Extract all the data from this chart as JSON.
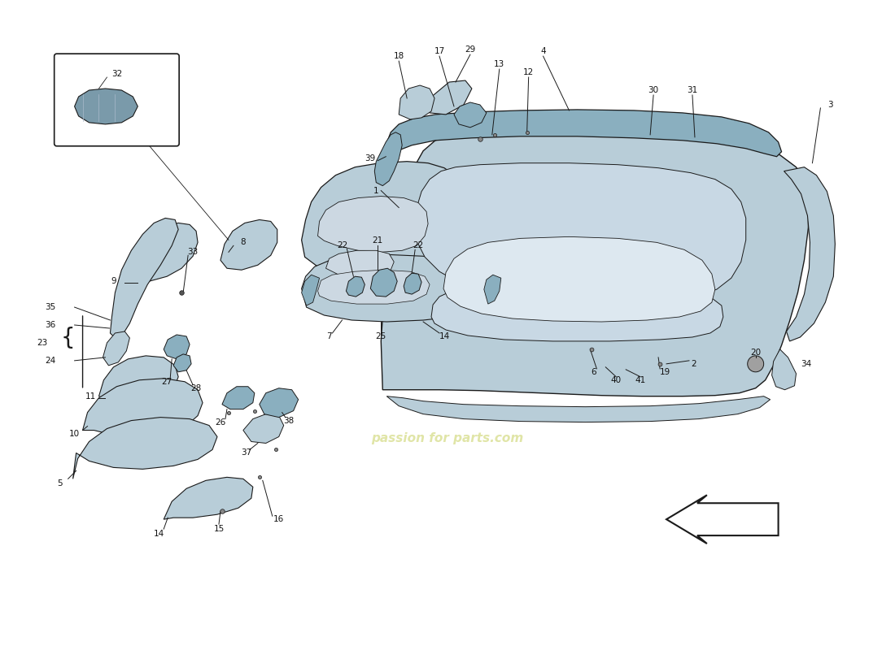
{
  "bg_color": "#ffffff",
  "pc_light": "#b8cdd8",
  "pc_mid": "#8aafbf",
  "pc_dark": "#6090a8",
  "lc": "#1a1a1a",
  "label_fs": 7.5,
  "fig_w": 11.0,
  "fig_h": 8.0,
  "dpi": 100,
  "wm_color": "#c8d060"
}
